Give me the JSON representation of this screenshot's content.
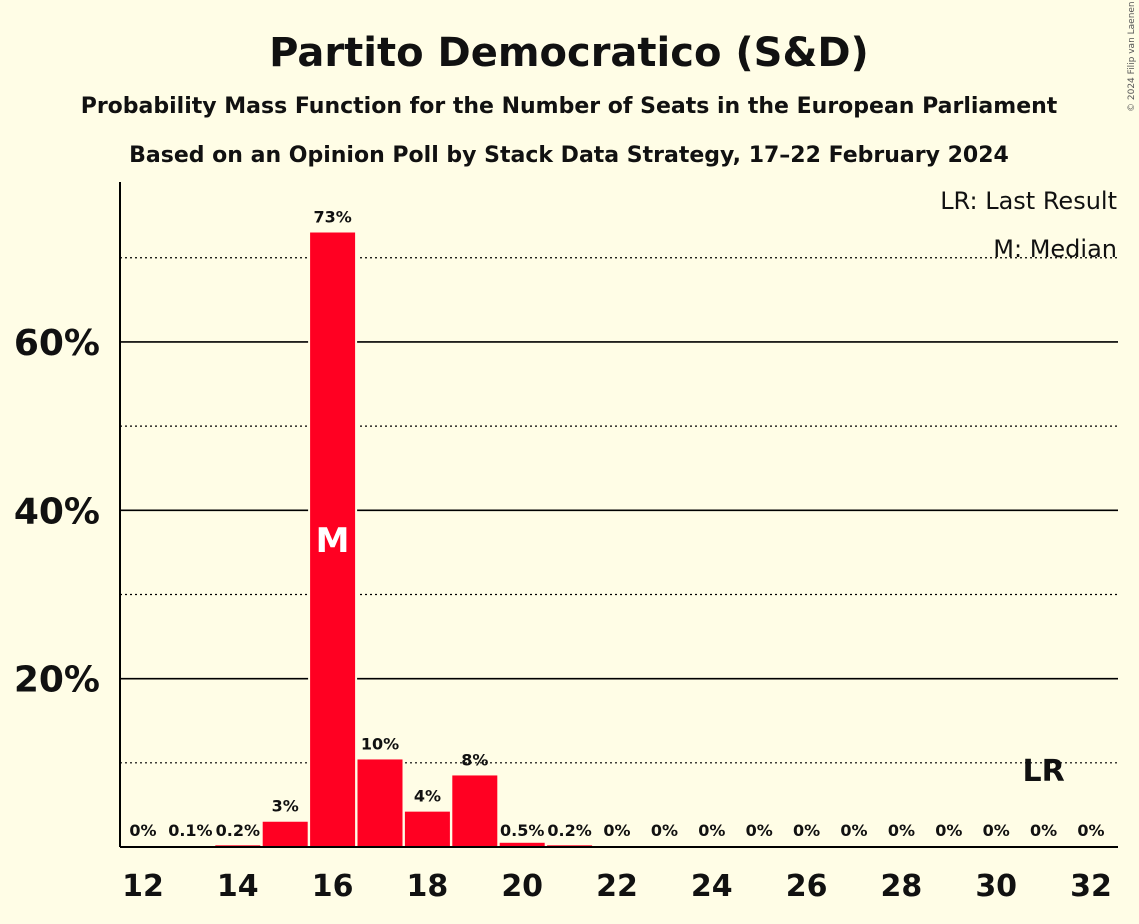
{
  "chart_data": {
    "type": "bar",
    "title": "Partito Democratico (S&D)",
    "subtitle": "Probability Mass Function for the Number of Seats in the European Parliament",
    "subtitle2": "Based on an Opinion Poll by Stack Data Strategy, 17–22 February 2024",
    "legend": [
      "LR: Last Result",
      "M: Median"
    ],
    "legend_position": "top-right",
    "copyright": "© 2024 Filip van Laenen",
    "x": [
      12,
      13,
      14,
      15,
      16,
      17,
      18,
      19,
      20,
      21,
      22,
      23,
      24,
      25,
      26,
      27,
      28,
      29,
      30,
      31,
      32
    ],
    "values": [
      0,
      0.1,
      0.2,
      3,
      73,
      10.4,
      4.2,
      8.5,
      0.5,
      0.2,
      0,
      0,
      0,
      0,
      0,
      0,
      0,
      0,
      0,
      0,
      0
    ],
    "labels": [
      "0%",
      "0.1%",
      "0.2%",
      "3%",
      "73%",
      "10%",
      "4%",
      "8%",
      "0.5%",
      "0.2%",
      "0%",
      "0%",
      "0%",
      "0%",
      "0%",
      "0%",
      "0%",
      "0%",
      "0%",
      "0%",
      "0%"
    ],
    "xticks": [
      12,
      14,
      16,
      18,
      20,
      22,
      24,
      26,
      28,
      30,
      32
    ],
    "yticks": [
      20,
      40,
      60
    ],
    "ytick_labels": [
      "20%",
      "40%",
      "60%"
    ],
    "y_dotted_gridlines": [
      10,
      30,
      50,
      70
    ],
    "ylim": [
      0,
      79
    ],
    "median": 16,
    "median_label": "M",
    "last_result": 31,
    "last_result_label": "LR",
    "bar_color": "#FF0022",
    "background_color": "#FFFDE6"
  }
}
